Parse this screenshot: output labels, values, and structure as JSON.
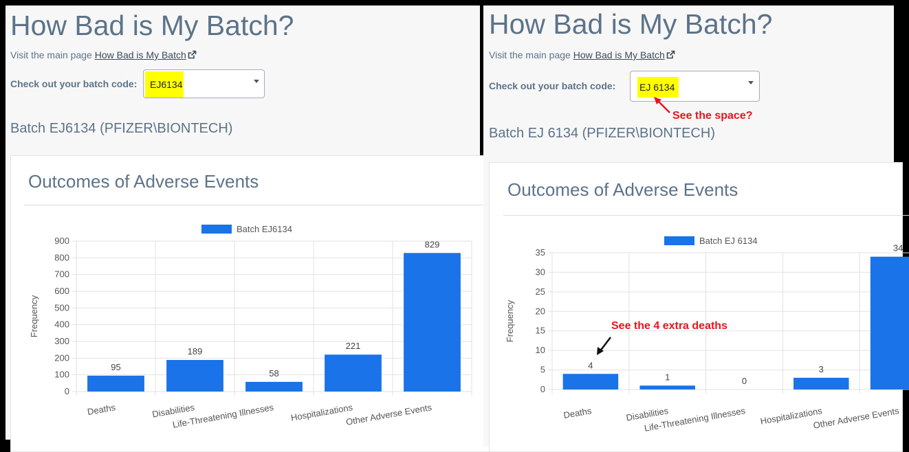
{
  "left": {
    "title": "How Bad is My Batch?",
    "visit_prefix": "Visit the main page",
    "visit_link": "How Bad is My Batch",
    "batch_label": "Check out your batch code:",
    "batch_value": "EJ6134",
    "batch_heading": "Batch EJ6134 (PFIZER\\BIONTECH)",
    "card_title": "Outcomes of Adverse Events"
  },
  "right": {
    "title": "How Bad is My Batch?",
    "visit_prefix": "Visit the main page",
    "visit_link": "How Bad is My Batch",
    "batch_label": "Check out your batch code:",
    "batch_value": "EJ 6134",
    "batch_heading": "Batch EJ 6134 (PFIZER\\BIONTECH)",
    "card_title": "Outcomes of Adverse Events",
    "annotation_space": "See the space?",
    "annotation_deaths": "See the 4 extra deaths"
  },
  "colors": {
    "bar": "#1a73e8",
    "text": "#5c7389",
    "highlight": "#ffff00",
    "annotation": "#e8141c"
  },
  "chart_data": [
    {
      "type": "bar",
      "categories": [
        "Deaths",
        "Disabilities",
        "Life-Threatening Illnesses",
        "Hospitalizations",
        "Other Adverse Events"
      ],
      "series": [
        {
          "name": "Batch EJ6134",
          "values": [
            95,
            189,
            58,
            221,
            829
          ]
        }
      ],
      "ylabel": "Frequency",
      "ylim": [
        0,
        900
      ],
      "yticks": [
        0,
        100,
        200,
        300,
        400,
        500,
        600,
        700,
        800,
        900
      ],
      "grid": true,
      "legend": "top"
    },
    {
      "type": "bar",
      "categories": [
        "Deaths",
        "Disabilities",
        "Life-Threatening Illnesses",
        "Hospitalizations",
        "Other Adverse Events"
      ],
      "series": [
        {
          "name": "Batch EJ 6134",
          "values": [
            4,
            1,
            0,
            3,
            34
          ]
        }
      ],
      "ylabel": "Frequency",
      "ylim": [
        0,
        35
      ],
      "yticks": [
        0,
        5,
        10,
        15,
        20,
        25,
        30,
        35
      ],
      "grid": true,
      "legend": "top"
    }
  ]
}
